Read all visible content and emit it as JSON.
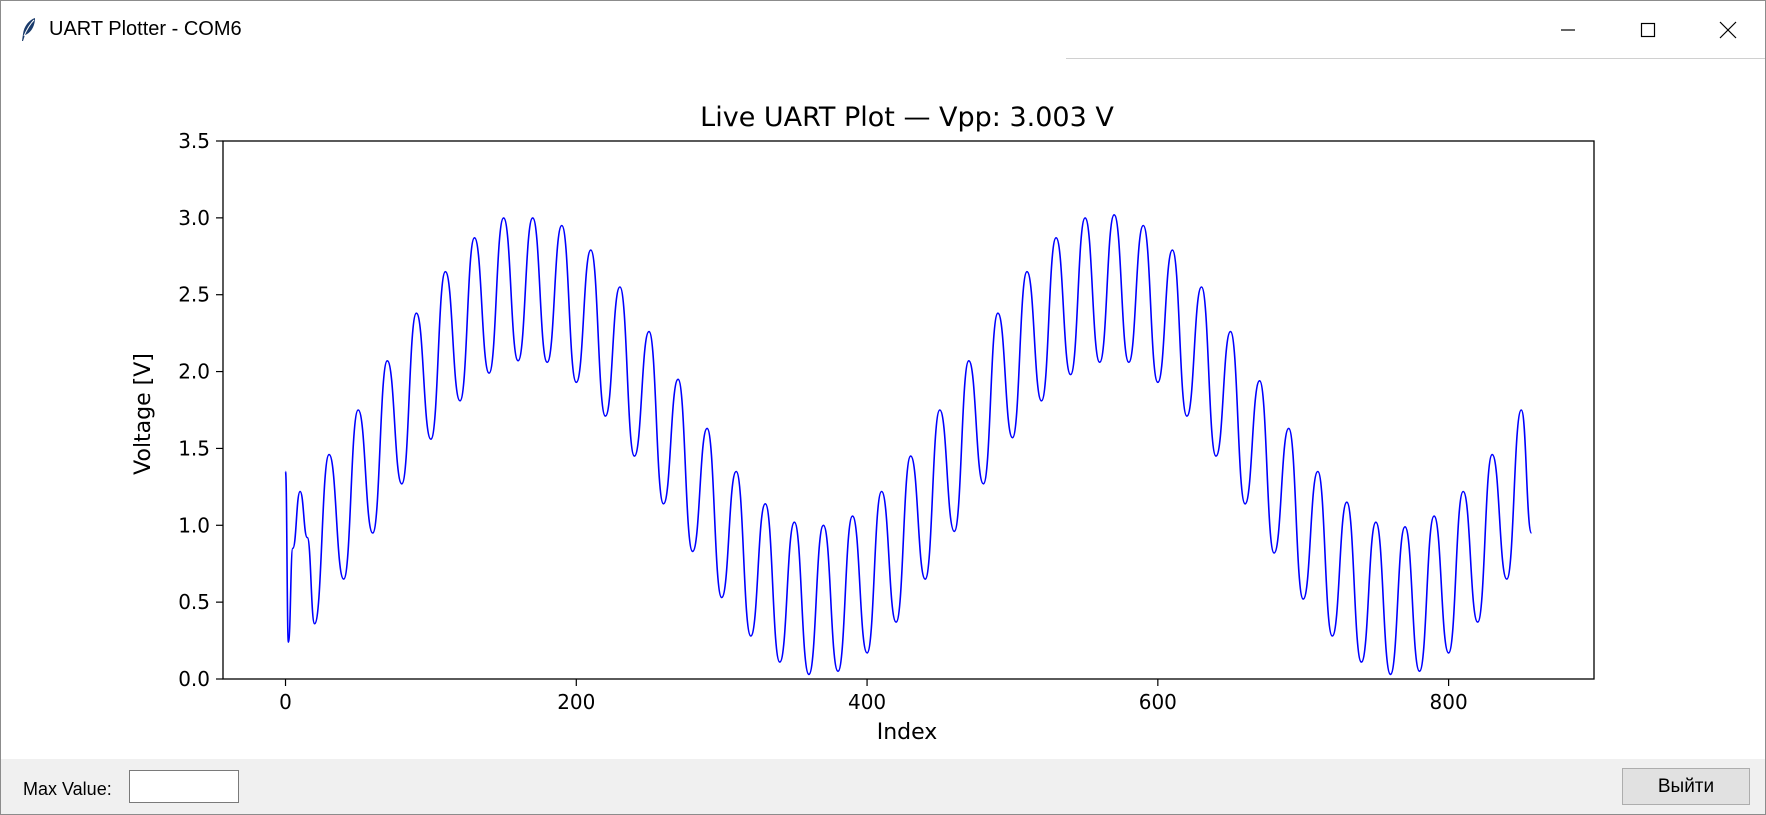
{
  "window": {
    "title": "UART Plotter - COM6",
    "icon": "feather-icon"
  },
  "controls": {
    "minimize_icon": "minimize-icon",
    "maximize_icon": "maximize-icon",
    "close_icon": "close-icon"
  },
  "bottom": {
    "max_label": "Max Value:",
    "max_value": "",
    "exit_label": "Выйти"
  },
  "chart_data": {
    "type": "line",
    "title": "Live UART Plot — Vpp: 3.003 V",
    "xlabel": "Index",
    "ylabel": "Voltage [V]",
    "xlim": [
      -43,
      900
    ],
    "ylim": [
      0.0,
      3.5
    ],
    "xticks": [
      "0",
      "200",
      "400",
      "600",
      "800"
    ],
    "xtick_values": [
      0,
      200,
      400,
      600,
      800
    ],
    "yticks": [
      "0.0",
      "0.5",
      "1.0",
      "1.5",
      "2.0",
      "2.5",
      "3.0",
      "3.5"
    ],
    "ytick_values": [
      0.0,
      0.5,
      1.0,
      1.5,
      2.0,
      2.5,
      3.0,
      3.5
    ],
    "grid": false,
    "series": [
      {
        "color": "#0000ff",
        "x_start": 0,
        "x_end": 857,
        "points": [
          [
            0,
            1.35
          ],
          [
            2,
            0.24
          ],
          [
            5,
            0.85
          ],
          [
            10,
            1.22
          ],
          [
            15,
            0.92
          ],
          [
            20,
            0.36
          ],
          [
            30,
            1.46
          ],
          [
            40,
            0.65
          ],
          [
            50,
            1.75
          ],
          [
            60,
            0.95
          ],
          [
            70,
            2.07
          ],
          [
            80,
            1.27
          ],
          [
            90,
            2.38
          ],
          [
            100,
            1.56
          ],
          [
            110,
            2.65
          ],
          [
            120,
            1.81
          ],
          [
            130,
            2.87
          ],
          [
            140,
            1.99
          ],
          [
            150,
            3.0
          ],
          [
            160,
            2.07
          ],
          [
            170,
            3.0
          ],
          [
            180,
            2.06
          ],
          [
            190,
            2.95
          ],
          [
            200,
            1.93
          ],
          [
            210,
            2.79
          ],
          [
            220,
            1.71
          ],
          [
            230,
            2.55
          ],
          [
            240,
            1.45
          ],
          [
            250,
            2.26
          ],
          [
            260,
            1.14
          ],
          [
            270,
            1.95
          ],
          [
            280,
            0.83
          ],
          [
            290,
            1.63
          ],
          [
            300,
            0.53
          ],
          [
            310,
            1.35
          ],
          [
            320,
            0.28
          ],
          [
            330,
            1.14
          ],
          [
            340,
            0.11
          ],
          [
            350,
            1.02
          ],
          [
            360,
            0.03
          ],
          [
            370,
            1.0
          ],
          [
            380,
            0.05
          ],
          [
            390,
            1.06
          ],
          [
            400,
            0.17
          ],
          [
            410,
            1.22
          ],
          [
            420,
            0.37
          ],
          [
            430,
            1.45
          ],
          [
            440,
            0.65
          ],
          [
            450,
            1.75
          ],
          [
            460,
            0.96
          ],
          [
            470,
            2.07
          ],
          [
            480,
            1.27
          ],
          [
            490,
            2.38
          ],
          [
            500,
            1.57
          ],
          [
            510,
            2.65
          ],
          [
            520,
            1.81
          ],
          [
            530,
            2.87
          ],
          [
            540,
            1.98
          ],
          [
            550,
            3.0
          ],
          [
            560,
            2.06
          ],
          [
            570,
            3.02
          ],
          [
            580,
            2.06
          ],
          [
            590,
            2.95
          ],
          [
            600,
            1.93
          ],
          [
            610,
            2.79
          ],
          [
            620,
            1.71
          ],
          [
            630,
            2.55
          ],
          [
            640,
            1.45
          ],
          [
            650,
            2.26
          ],
          [
            660,
            1.14
          ],
          [
            670,
            1.94
          ],
          [
            680,
            0.82
          ],
          [
            690,
            1.63
          ],
          [
            700,
            0.52
          ],
          [
            710,
            1.35
          ],
          [
            720,
            0.28
          ],
          [
            730,
            1.15
          ],
          [
            740,
            0.11
          ],
          [
            750,
            1.02
          ],
          [
            760,
            0.03
          ],
          [
            770,
            0.99
          ],
          [
            780,
            0.05
          ],
          [
            790,
            1.06
          ],
          [
            800,
            0.17
          ],
          [
            810,
            1.22
          ],
          [
            820,
            0.37
          ],
          [
            830,
            1.46
          ],
          [
            840,
            0.65
          ],
          [
            850,
            1.75
          ],
          [
            857,
            0.95
          ]
        ]
      }
    ]
  }
}
